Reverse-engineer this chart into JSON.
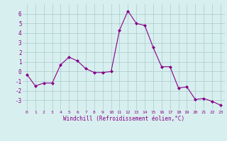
{
  "x": [
    0,
    1,
    2,
    3,
    4,
    5,
    6,
    7,
    8,
    9,
    10,
    11,
    12,
    13,
    14,
    15,
    16,
    17,
    18,
    19,
    20,
    21,
    22,
    23
  ],
  "y": [
    -0.3,
    -1.5,
    -1.2,
    -1.2,
    0.7,
    1.5,
    1.1,
    0.3,
    -0.1,
    -0.1,
    0.0,
    4.3,
    6.3,
    5.0,
    4.8,
    2.5,
    0.5,
    0.5,
    -1.7,
    -1.6,
    -2.9,
    -2.8,
    -3.1,
    -3.5
  ],
  "line_color": "#880088",
  "marker": "D",
  "marker_size": 2,
  "bg_color": "#d8efef",
  "grid_color": "#b0d0d0",
  "xlabel": "Windchill (Refroidissement éolien,°C)",
  "tick_color": "#880088",
  "ylim": [
    -4,
    7
  ],
  "yticks": [
    -3,
    -2,
    -1,
    0,
    1,
    2,
    3,
    4,
    5,
    6
  ],
  "xticks": [
    0,
    1,
    2,
    3,
    4,
    5,
    6,
    7,
    8,
    9,
    10,
    11,
    12,
    13,
    14,
    15,
    16,
    17,
    18,
    19,
    20,
    21,
    22,
    23
  ]
}
